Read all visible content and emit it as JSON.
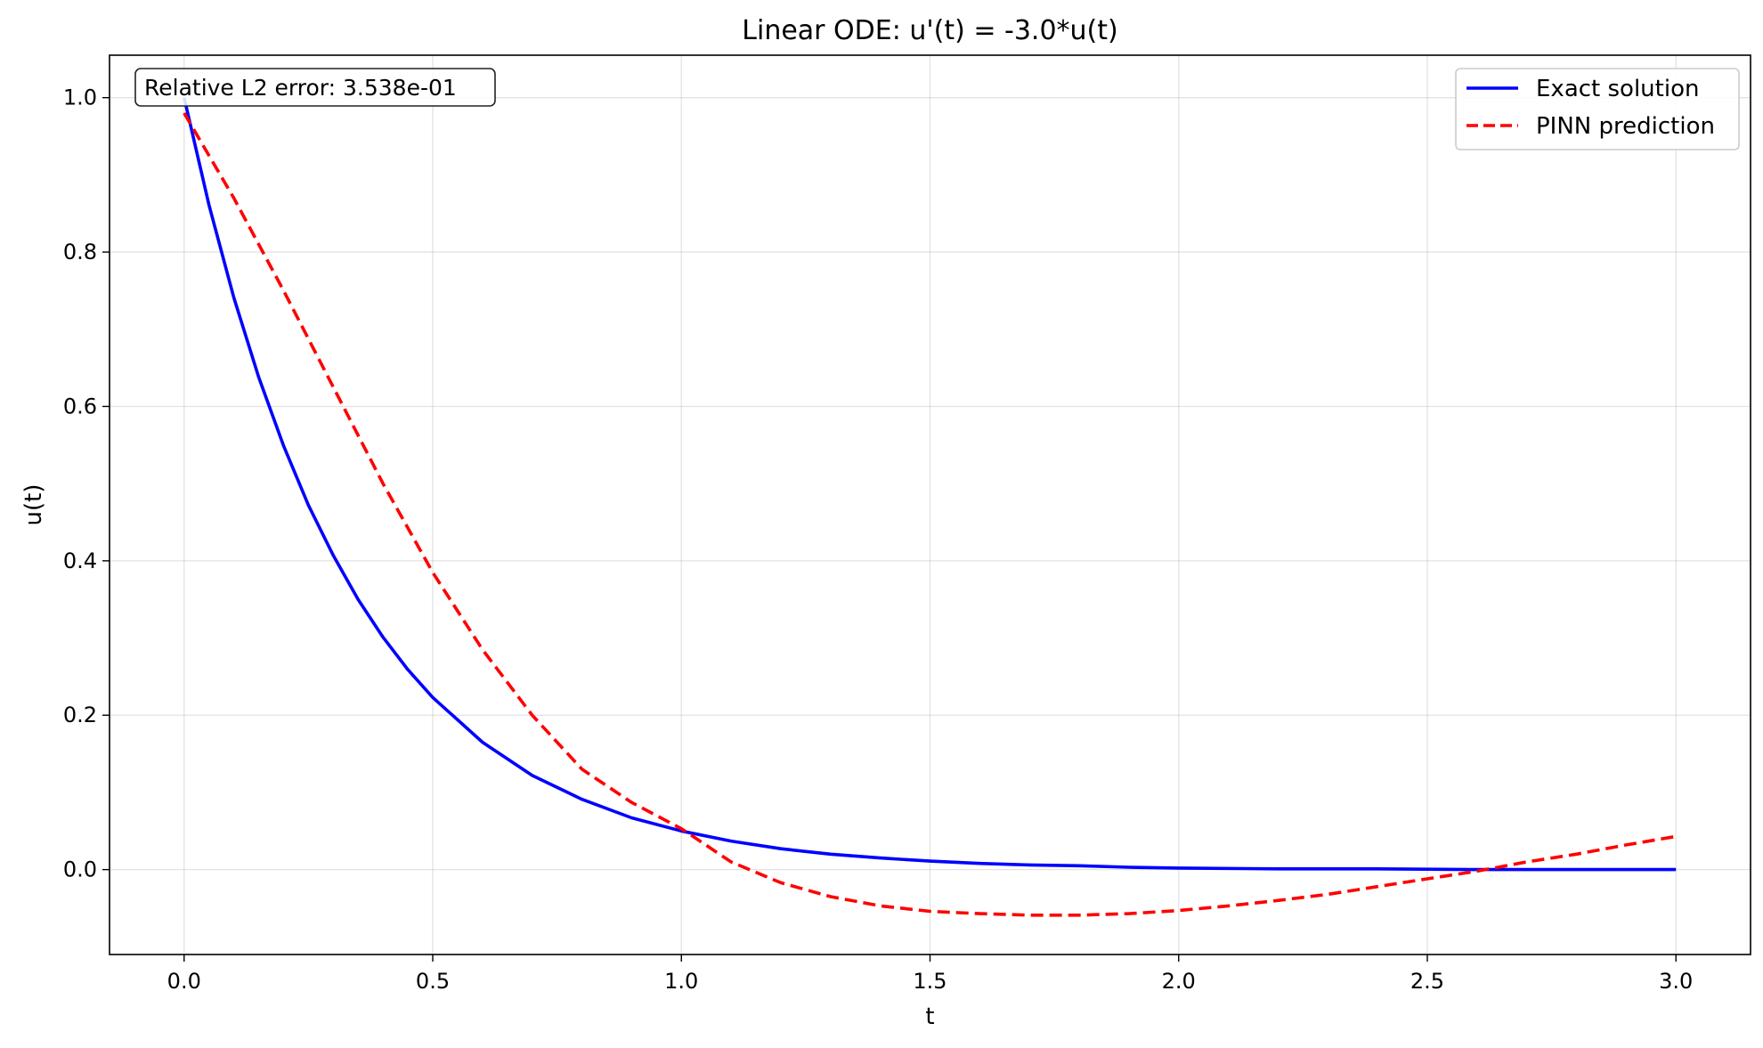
{
  "chart_data": {
    "type": "line",
    "title": "Linear ODE: u'(t) = -3.0*u(t)",
    "xlabel": "t",
    "ylabel": "u(t)",
    "xlim": [
      -0.15,
      3.15
    ],
    "ylim": [
      -0.11,
      1.055
    ],
    "x_ticks": [
      0.0,
      0.5,
      1.0,
      1.5,
      2.0,
      2.5,
      3.0
    ],
    "x_tick_labels": [
      "0.0",
      "0.5",
      "1.0",
      "1.5",
      "2.0",
      "2.5",
      "3.0"
    ],
    "y_ticks": [
      0.0,
      0.2,
      0.4,
      0.6,
      0.8,
      1.0
    ],
    "y_tick_labels": [
      "0.0",
      "0.2",
      "0.4",
      "0.6",
      "0.8",
      "1.0"
    ],
    "grid": true,
    "legend_position": "top-right",
    "annotation": "Relative L2 error: 3.538e-01",
    "series": [
      {
        "name": "Exact solution",
        "color": "#0000ff",
        "style": "solid",
        "x": [
          0.0,
          0.05,
          0.1,
          0.15,
          0.2,
          0.25,
          0.3,
          0.35,
          0.4,
          0.45,
          0.5,
          0.6,
          0.7,
          0.8,
          0.9,
          1.0,
          1.1,
          1.2,
          1.3,
          1.4,
          1.5,
          1.6,
          1.7,
          1.8,
          1.9,
          2.0,
          2.2,
          2.4,
          2.6,
          2.8,
          3.0
        ],
        "y": [
          1.0,
          0.861,
          0.741,
          0.638,
          0.549,
          0.472,
          0.407,
          0.35,
          0.301,
          0.259,
          0.223,
          0.165,
          0.122,
          0.091,
          0.067,
          0.05,
          0.037,
          0.027,
          0.02,
          0.015,
          0.011,
          0.008,
          0.006,
          0.005,
          0.003,
          0.002,
          0.001,
          0.001,
          0.0,
          0.0,
          0.0
        ]
      },
      {
        "name": "PINN prediction",
        "color": "#ff0000",
        "style": "dashed",
        "x": [
          0.0,
          0.1,
          0.2,
          0.3,
          0.4,
          0.5,
          0.6,
          0.7,
          0.8,
          0.9,
          1.0,
          1.1,
          1.2,
          1.3,
          1.4,
          1.5,
          1.6,
          1.7,
          1.8,
          1.9,
          2.0,
          2.1,
          2.2,
          2.3,
          2.4,
          2.5,
          2.6,
          2.7,
          2.8,
          2.9,
          3.0
        ],
        "y": [
          0.98,
          0.87,
          0.75,
          0.625,
          0.5,
          0.385,
          0.285,
          0.2,
          0.13,
          0.087,
          0.053,
          0.01,
          -0.017,
          -0.035,
          -0.047,
          -0.054,
          -0.057,
          -0.059,
          -0.059,
          -0.057,
          -0.053,
          -0.047,
          -0.04,
          -0.032,
          -0.022,
          -0.012,
          -0.002,
          0.01,
          0.02,
          0.032,
          0.043
        ]
      }
    ]
  }
}
